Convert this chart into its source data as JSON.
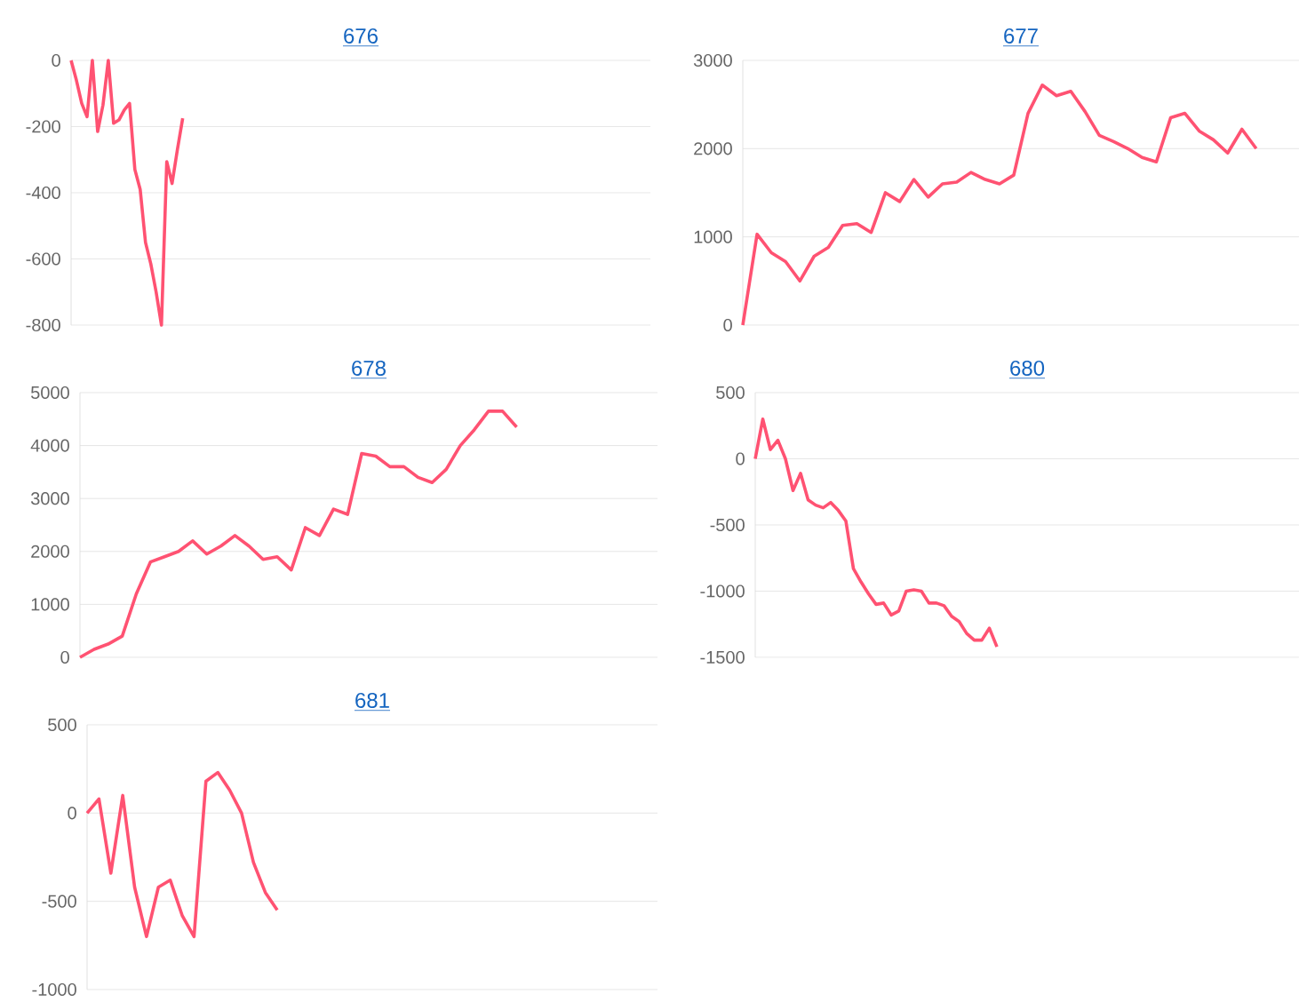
{
  "chart_data": [
    {
      "type": "line",
      "title": "676",
      "color": "#ff5272",
      "ylim": [
        -800,
        0
      ],
      "yticks": [
        -800,
        -600,
        -400,
        -200,
        0
      ],
      "grid": "y",
      "tick_labels": "y",
      "categories": [
        null,
        null,
        null,
        null,
        null,
        null,
        null,
        null,
        null,
        null,
        null,
        null,
        null,
        null,
        null,
        null,
        null,
        null,
        null,
        null,
        null,
        null,
        null,
        null,
        null,
        null,
        null,
        null,
        null,
        null,
        null,
        null,
        null,
        null,
        null,
        null,
        null,
        null,
        null,
        null,
        null,
        null,
        null,
        null,
        null,
        null,
        null,
        null,
        null,
        null,
        null,
        null,
        null,
        null,
        null,
        null,
        null,
        null,
        null,
        null,
        null,
        null,
        null,
        null,
        null,
        null,
        null,
        null,
        null,
        null,
        null,
        null,
        null,
        null,
        null,
        null,
        null,
        null,
        null,
        null,
        null,
        null,
        null,
        null,
        null,
        null,
        null,
        null,
        null,
        null,
        null,
        null,
        null,
        null,
        null,
        null,
        null,
        null,
        null,
        null,
        null,
        null,
        null,
        null,
        null,
        null,
        null,
        null,
        null,
        null
      ],
      "values": [
        0,
        -60,
        -130,
        -170,
        0,
        -215,
        -135,
        0,
        -190,
        -180,
        -150,
        -130,
        -330,
        -390,
        -550,
        -615,
        -700,
        -800,
        -306,
        -372,
        -270,
        -175,
        null,
        null,
        null,
        null,
        null,
        null,
        null,
        null,
        null,
        null,
        null,
        null,
        null,
        null,
        null,
        null,
        null,
        null,
        null,
        null,
        null,
        null,
        null,
        null,
        null,
        null,
        null,
        null,
        null,
        null,
        null,
        null,
        null,
        null,
        null,
        null,
        null,
        null,
        null,
        null,
        null,
        null,
        null,
        null,
        null,
        null,
        null,
        null,
        null,
        null,
        null,
        null,
        null,
        null,
        null,
        null,
        null,
        null,
        null,
        null,
        null,
        null,
        null,
        null,
        null,
        null,
        null,
        null,
        null,
        null,
        null,
        null,
        null,
        null,
        null,
        null,
        null,
        null,
        null,
        null,
        null,
        null,
        null,
        null,
        null,
        null,
        null,
        null
      ]
    },
    {
      "type": "line",
      "title": "677",
      "color": "#ff5272",
      "ylim": [
        0,
        3000
      ],
      "yticks": [
        0,
        1000,
        2000,
        3000
      ],
      "grid": "y",
      "tick_labels": "y",
      "categories": [
        null,
        null,
        null,
        null,
        null,
        null,
        null,
        null,
        null,
        null,
        null,
        null,
        null,
        null,
        null,
        null,
        null,
        null,
        null,
        null,
        null,
        null,
        null,
        null,
        null,
        null,
        null,
        null,
        null,
        null,
        null,
        null,
        null,
        null,
        null,
        null,
        null,
        null,
        null,
        null
      ],
      "values": [
        0,
        1030,
        820,
        720,
        500,
        780,
        880,
        1130,
        1150,
        1050,
        1500,
        1400,
        1650,
        1450,
        1600,
        1620,
        1730,
        1650,
        1600,
        1700,
        2400,
        2720,
        2600,
        2650,
        2420,
        2150,
        2080,
        2000,
        1900,
        1850,
        2350,
        2400,
        2200,
        2100,
        1950,
        2220,
        2000,
        null,
        null,
        null
      ]
    },
    {
      "type": "line",
      "title": "678",
      "color": "#ff5272",
      "ylim": [
        0,
        5000
      ],
      "yticks": [
        0,
        1000,
        2000,
        3000,
        4000,
        5000
      ],
      "grid": "y",
      "tick_labels": "y",
      "categories": [
        null,
        null,
        null,
        null,
        null,
        null,
        null,
        null,
        null,
        null,
        null,
        null,
        null,
        null,
        null,
        null,
        null,
        null,
        null,
        null,
        null,
        null,
        null,
        null,
        null,
        null,
        null,
        null,
        null,
        null,
        null,
        null,
        null,
        null,
        null,
        null,
        null,
        null,
        null,
        null,
        null,
        null
      ],
      "values": [
        0,
        150,
        250,
        400,
        1200,
        1800,
        1900,
        2000,
        2200,
        1950,
        2100,
        2300,
        2100,
        1850,
        1900,
        1650,
        2450,
        2300,
        2800,
        2700,
        3850,
        3800,
        3600,
        3600,
        3400,
        3300,
        3550,
        4000,
        4300,
        4650,
        4650,
        4350,
        null,
        null,
        null,
        null,
        null,
        null,
        null,
        null,
        null,
        null
      ]
    },
    {
      "type": "line",
      "title": "680",
      "color": "#ff5272",
      "ylim": [
        -1500,
        500
      ],
      "yticks": [
        -1500,
        -1000,
        -500,
        0,
        500
      ],
      "grid": "y",
      "tick_labels": "y",
      "categories": [
        null,
        null,
        null,
        null,
        null,
        null,
        null,
        null,
        null,
        null,
        null,
        null,
        null,
        null,
        null,
        null,
        null,
        null,
        null,
        null,
        null,
        null,
        null,
        null,
        null,
        null,
        null,
        null,
        null,
        null,
        null,
        null,
        null,
        null,
        null,
        null,
        null,
        null,
        null,
        null,
        null,
        null,
        null,
        null,
        null,
        null,
        null,
        null,
        null,
        null,
        null,
        null,
        null,
        null,
        null,
        null,
        null,
        null,
        null,
        null,
        null,
        null,
        null,
        null,
        null,
        null,
        null,
        null,
        null,
        null,
        null,
        null,
        null
      ],
      "values": [
        0,
        300,
        70,
        140,
        0,
        -240,
        -110,
        -310,
        -350,
        -370,
        -330,
        -390,
        -470,
        -830,
        -930,
        -1020,
        -1100,
        -1090,
        -1180,
        -1150,
        -1000,
        -990,
        -1000,
        -1090,
        -1090,
        -1110,
        -1190,
        -1230,
        -1320,
        -1370,
        -1370,
        -1280,
        -1420,
        null,
        null,
        null,
        null,
        null,
        null,
        null,
        null,
        null,
        null,
        null,
        null,
        null,
        null,
        null,
        null,
        null,
        null,
        null,
        null,
        null,
        null,
        null,
        null,
        null,
        null,
        null,
        null,
        null,
        null,
        null,
        null,
        null,
        null,
        null,
        null,
        null,
        null,
        null,
        null
      ]
    },
    {
      "type": "line",
      "title": "681",
      "color": "#ff5272",
      "ylim": [
        -1000,
        500
      ],
      "yticks": [
        -1000,
        -500,
        0,
        500
      ],
      "grid": "y",
      "tick_labels": "y",
      "categories": [
        null,
        null,
        null,
        null,
        null,
        null,
        null,
        null,
        null,
        null,
        null,
        null,
        null,
        null,
        null,
        null,
        null,
        null,
        null,
        null,
        null,
        null,
        null,
        null,
        null,
        null,
        null,
        null,
        null,
        null,
        null,
        null,
        null,
        null,
        null,
        null,
        null,
        null,
        null,
        null,
        null,
        null,
        null,
        null,
        null,
        null,
        null,
        null,
        null
      ],
      "values": [
        0,
        80,
        -340,
        100,
        -420,
        -700,
        -420,
        -380,
        -580,
        -700,
        180,
        230,
        130,
        0,
        -280,
        -450,
        -550,
        null,
        null,
        null,
        null,
        null,
        null,
        null,
        null,
        null,
        null,
        null,
        null,
        null,
        null,
        null,
        null,
        null,
        null,
        null,
        null,
        null,
        null,
        null,
        null,
        null,
        null,
        null,
        null,
        null,
        null,
        null,
        null
      ]
    }
  ]
}
